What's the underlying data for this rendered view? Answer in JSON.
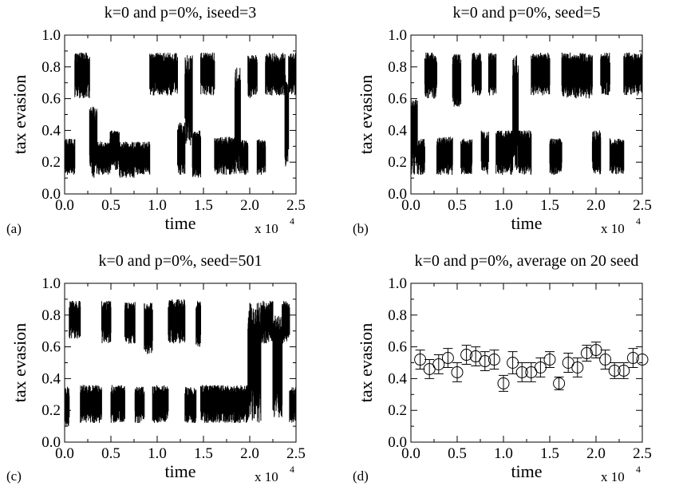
{
  "chart_data": [
    {
      "panel": "(a)",
      "type": "line",
      "title": "k=0 and p=0%,  iseed=3",
      "xlabel": "time",
      "ylabel": "tax evasion",
      "x_multiplier": "x 10",
      "x_multiplier_exp": "4",
      "xlim": [
        0,
        25000
      ],
      "ylim": [
        0,
        1
      ],
      "xticks": [
        "0.0",
        "0.5",
        "1.0",
        "1.5",
        "2.0",
        "2.5"
      ],
      "yticks": [
        "0.0",
        "0.2",
        "0.4",
        "0.6",
        "0.8",
        "1.0"
      ],
      "series": [
        {
          "segments": [
            {
              "x": [
                0,
                1100
              ],
              "low": 0.12,
              "high": 0.35
            },
            {
              "x": [
                1100,
                2700
              ],
              "low": 0.6,
              "high": 0.89
            },
            {
              "x": [
                2700,
                3500
              ],
              "low": 0.1,
              "high": 0.55
            },
            {
              "x": [
                3500,
                4900
              ],
              "low": 0.12,
              "high": 0.33
            },
            {
              "x": [
                4900,
                5900
              ],
              "low": 0.15,
              "high": 0.4
            },
            {
              "x": [
                5900,
                7500
              ],
              "low": 0.1,
              "high": 0.33
            },
            {
              "x": [
                7500,
                9200
              ],
              "low": 0.12,
              "high": 0.33
            },
            {
              "x": [
                9200,
                12200
              ],
              "low": 0.62,
              "high": 0.89
            },
            {
              "x": [
                12200,
                13000
              ],
              "low": 0.12,
              "high": 0.45
            },
            {
              "x": [
                13000,
                13800
              ],
              "low": 0.3,
              "high": 0.88
            },
            {
              "x": [
                13800,
                14700
              ],
              "low": 0.1,
              "high": 0.4
            },
            {
              "x": [
                14700,
                16200
              ],
              "low": 0.62,
              "high": 0.89
            },
            {
              "x": [
                16200,
                18400
              ],
              "low": 0.12,
              "high": 0.36
            },
            {
              "x": [
                18400,
                19000
              ],
              "low": 0.12,
              "high": 0.8
            },
            {
              "x": [
                19000,
                19800
              ],
              "low": 0.12,
              "high": 0.34
            },
            {
              "x": [
                19800,
                20800
              ],
              "low": 0.6,
              "high": 0.88
            },
            {
              "x": [
                20800,
                21700
              ],
              "low": 0.12,
              "high": 0.35
            },
            {
              "x": [
                21700,
                23800
              ],
              "low": 0.62,
              "high": 0.89
            },
            {
              "x": [
                23800,
                24200
              ],
              "low": 0.15,
              "high": 0.75
            },
            {
              "x": [
                24200,
                25000
              ],
              "low": 0.62,
              "high": 0.89
            }
          ]
        }
      ]
    },
    {
      "panel": "(b)",
      "type": "line",
      "title": "k=0 and p=0%, seed=5",
      "xlabel": "time",
      "ylabel": "tax evasion",
      "x_multiplier": "x 10",
      "x_multiplier_exp": "4",
      "xlim": [
        0,
        25000
      ],
      "ylim": [
        0,
        1
      ],
      "xticks": [
        "0.0",
        "0.5",
        "1.0",
        "1.5",
        "2.0",
        "2.5"
      ],
      "yticks": [
        "0.0",
        "0.2",
        "0.4",
        "0.6",
        "0.8",
        "1.0"
      ],
      "series": [
        {
          "segments": [
            {
              "x": [
                0,
                700
              ],
              "low": 0.12,
              "high": 0.6
            },
            {
              "x": [
                700,
                1500
              ],
              "low": 0.12,
              "high": 0.35
            },
            {
              "x": [
                1500,
                2800
              ],
              "low": 0.6,
              "high": 0.89
            },
            {
              "x": [
                2800,
                4500
              ],
              "low": 0.12,
              "high": 0.36
            },
            {
              "x": [
                4500,
                5400
              ],
              "low": 0.55,
              "high": 0.88
            },
            {
              "x": [
                5400,
                6600
              ],
              "low": 0.12,
              "high": 0.35
            },
            {
              "x": [
                6600,
                7600
              ],
              "low": 0.62,
              "high": 0.89
            },
            {
              "x": [
                7600,
                8400
              ],
              "low": 0.12,
              "high": 0.4
            },
            {
              "x": [
                8400,
                9200
              ],
              "low": 0.62,
              "high": 0.89
            },
            {
              "x": [
                9200,
                11000
              ],
              "low": 0.12,
              "high": 0.4
            },
            {
              "x": [
                11000,
                11600
              ],
              "low": 0.15,
              "high": 0.9
            },
            {
              "x": [
                11600,
                13000
              ],
              "low": 0.12,
              "high": 0.4
            },
            {
              "x": [
                13000,
                15000
              ],
              "low": 0.62,
              "high": 0.89
            },
            {
              "x": [
                15000,
                16300
              ],
              "low": 0.12,
              "high": 0.35
            },
            {
              "x": [
                16300,
                19600
              ],
              "low": 0.6,
              "high": 0.89
            },
            {
              "x": [
                19600,
                20500
              ],
              "low": 0.12,
              "high": 0.4
            },
            {
              "x": [
                20500,
                21500
              ],
              "low": 0.62,
              "high": 0.89
            },
            {
              "x": [
                21500,
                23000
              ],
              "low": 0.12,
              "high": 0.35
            },
            {
              "x": [
                23000,
                25000
              ],
              "low": 0.62,
              "high": 0.89
            }
          ]
        }
      ]
    },
    {
      "panel": "(c)",
      "type": "line",
      "title": "k=0 and p=0%, seed=501",
      "xlabel": "time",
      "ylabel": "tax evasion",
      "x_multiplier": "x 10",
      "x_multiplier_exp": "4",
      "xlim": [
        0,
        25000
      ],
      "ylim": [
        0,
        1
      ],
      "xticks": [
        "0.0",
        "0.5",
        "1.0",
        "1.5",
        "2.0",
        "2.5"
      ],
      "yticks": [
        "0.0",
        "0.2",
        "0.4",
        "0.6",
        "0.8",
        "1.0"
      ],
      "series": [
        {
          "segments": [
            {
              "x": [
                0,
                500
              ],
              "low": 0.1,
              "high": 0.35
            },
            {
              "x": [
                500,
                1700
              ],
              "low": 0.65,
              "high": 0.89
            },
            {
              "x": [
                1700,
                4000
              ],
              "low": 0.12,
              "high": 0.36
            },
            {
              "x": [
                4000,
                5000
              ],
              "low": 0.62,
              "high": 0.89
            },
            {
              "x": [
                5000,
                6500
              ],
              "low": 0.12,
              "high": 0.36
            },
            {
              "x": [
                6500,
                7600
              ],
              "low": 0.62,
              "high": 0.89
            },
            {
              "x": [
                7600,
                8600
              ],
              "low": 0.12,
              "high": 0.35
            },
            {
              "x": [
                8600,
                9500
              ],
              "low": 0.55,
              "high": 0.88
            },
            {
              "x": [
                9500,
                11200
              ],
              "low": 0.12,
              "high": 0.36
            },
            {
              "x": [
                11200,
                13000
              ],
              "low": 0.62,
              "high": 0.9
            },
            {
              "x": [
                13000,
                14200
              ],
              "low": 0.12,
              "high": 0.35
            },
            {
              "x": [
                14200,
                14700
              ],
              "low": 0.6,
              "high": 0.89
            },
            {
              "x": [
                14700,
                19800
              ],
              "low": 0.12,
              "high": 0.36
            },
            {
              "x": [
                19800,
                21200
              ],
              "low": 0.12,
              "high": 0.88
            },
            {
              "x": [
                21200,
                22500
              ],
              "low": 0.62,
              "high": 0.89
            },
            {
              "x": [
                22500,
                23500
              ],
              "low": 0.15,
              "high": 0.8
            },
            {
              "x": [
                23500,
                24300
              ],
              "low": 0.62,
              "high": 0.89
            },
            {
              "x": [
                24300,
                25000
              ],
              "low": 0.12,
              "high": 0.35
            }
          ]
        }
      ]
    },
    {
      "panel": "(d)",
      "type": "scatter",
      "title": "k=0 and p=0%, average on 20 seed",
      "xlabel": "time",
      "ylabel": "tax evasion",
      "x_multiplier": "x 10",
      "x_multiplier_exp": "4",
      "xlim": [
        0,
        25000
      ],
      "ylim": [
        0,
        1
      ],
      "xticks": [
        "0.0",
        "0.5",
        "1.0",
        "1.5",
        "2.0",
        "2.5"
      ],
      "yticks": [
        "0.0",
        "0.2",
        "0.4",
        "0.6",
        "0.8",
        "1.0"
      ],
      "series": [
        {
          "marker": "open-circle",
          "error_bars": true,
          "x": [
            1000,
            2000,
            3000,
            4000,
            5000,
            6000,
            7000,
            8000,
            9000,
            10000,
            11000,
            12000,
            13000,
            14000,
            15000,
            16000,
            17000,
            18000,
            19000,
            20000,
            21000,
            22000,
            23000,
            24000,
            25000
          ],
          "y": [
            0.52,
            0.46,
            0.49,
            0.53,
            0.44,
            0.55,
            0.54,
            0.51,
            0.52,
            0.37,
            0.5,
            0.44,
            0.44,
            0.47,
            0.52,
            0.37,
            0.5,
            0.47,
            0.56,
            0.58,
            0.52,
            0.45,
            0.45,
            0.53,
            0.52
          ],
          "err": [
            0.06,
            0.06,
            0.06,
            0.06,
            0.06,
            0.06,
            0.06,
            0.06,
            0.06,
            0.05,
            0.07,
            0.06,
            0.06,
            0.06,
            0.05,
            0.04,
            0.06,
            0.06,
            0.05,
            0.05,
            0.06,
            0.05,
            0.05,
            0.06,
            0.0
          ]
        }
      ]
    }
  ]
}
